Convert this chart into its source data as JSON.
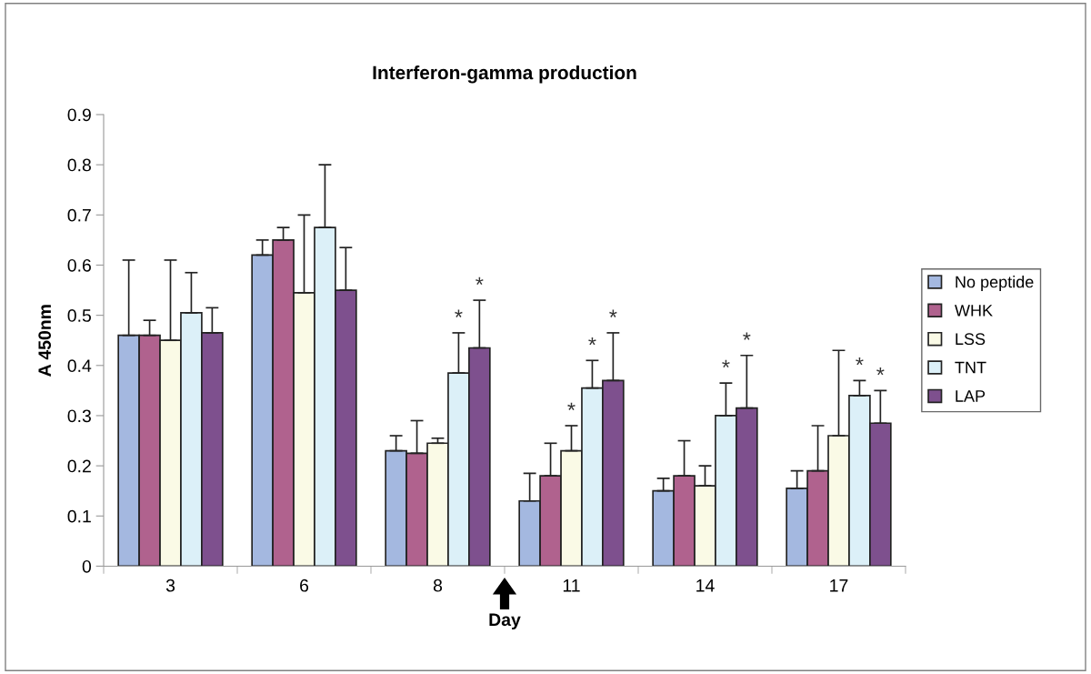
{
  "chart_data": {
    "type": "bar",
    "title": "Interferon-gamma production",
    "xlabel": "Day",
    "ylabel": "A 450nm",
    "categories": [
      "3",
      "6",
      "8",
      "11",
      "14",
      "17"
    ],
    "series": [
      {
        "name": "No peptide",
        "color": "#a4b8e0",
        "values": [
          0.46,
          0.62,
          0.23,
          0.13,
          0.15,
          0.155
        ],
        "errors": [
          [
            0.46,
            0.61
          ],
          [
            0.62,
            0.65
          ],
          [
            0.23,
            0.26
          ],
          [
            0.13,
            0.185
          ],
          [
            0.15,
            0.175
          ],
          [
            0.155,
            0.19
          ]
        ],
        "value_labels": [
          null,
          null,
          null,
          null,
          null,
          null
        ]
      },
      {
        "name": "WHK",
        "color": "#b0628e",
        "values": [
          0.46,
          0.65,
          0.225,
          0.18,
          0.18,
          0.19
        ],
        "errors": [
          [
            0.46,
            0.49
          ],
          [
            0.65,
            0.675
          ],
          [
            0.225,
            0.29
          ],
          [
            0.18,
            0.245
          ],
          [
            0.18,
            0.25
          ],
          [
            0.19,
            0.28
          ]
        ],
        "value_labels": [
          null,
          null,
          null,
          null,
          null,
          null
        ]
      },
      {
        "name": "LSS",
        "color": "#fafae6",
        "values": [
          0.45,
          0.545,
          0.245,
          0.23,
          0.16,
          0.26
        ],
        "errors": [
          [
            0.45,
            0.61
          ],
          [
            0.545,
            0.7
          ],
          [
            0.245,
            0.255
          ],
          [
            0.23,
            0.28
          ],
          [
            0.16,
            0.2
          ],
          [
            0.26,
            0.43
          ]
        ],
        "value_labels": [
          null,
          null,
          null,
          "*",
          null,
          null
        ]
      },
      {
        "name": "TNT",
        "color": "#dcf0f8",
        "values": [
          0.505,
          0.675,
          0.385,
          0.355,
          0.3,
          0.34
        ],
        "errors": [
          [
            0.505,
            0.585
          ],
          [
            0.675,
            0.8
          ],
          [
            0.385,
            0.465
          ],
          [
            0.355,
            0.41
          ],
          [
            0.3,
            0.365
          ],
          [
            0.34,
            0.37
          ]
        ],
        "value_labels": [
          null,
          null,
          "*",
          "*",
          "*",
          "*"
        ]
      },
      {
        "name": "LAP",
        "color": "#7e508e",
        "values": [
          0.465,
          0.55,
          0.435,
          0.37,
          0.315,
          0.285
        ],
        "errors": [
          [
            0.465,
            0.515
          ],
          [
            0.55,
            0.635
          ],
          [
            0.435,
            0.53
          ],
          [
            0.37,
            0.465
          ],
          [
            0.315,
            0.42
          ],
          [
            0.285,
            0.35
          ]
        ],
        "value_labels": [
          null,
          null,
          "*",
          "*",
          "*",
          "*"
        ]
      }
    ],
    "ylim": [
      0,
      0.9
    ],
    "yticks": [
      0,
      0.1,
      0.2,
      0.3,
      0.4,
      0.5,
      0.6,
      0.7,
      0.8,
      0.9
    ],
    "grid": false,
    "legend": "right"
  }
}
